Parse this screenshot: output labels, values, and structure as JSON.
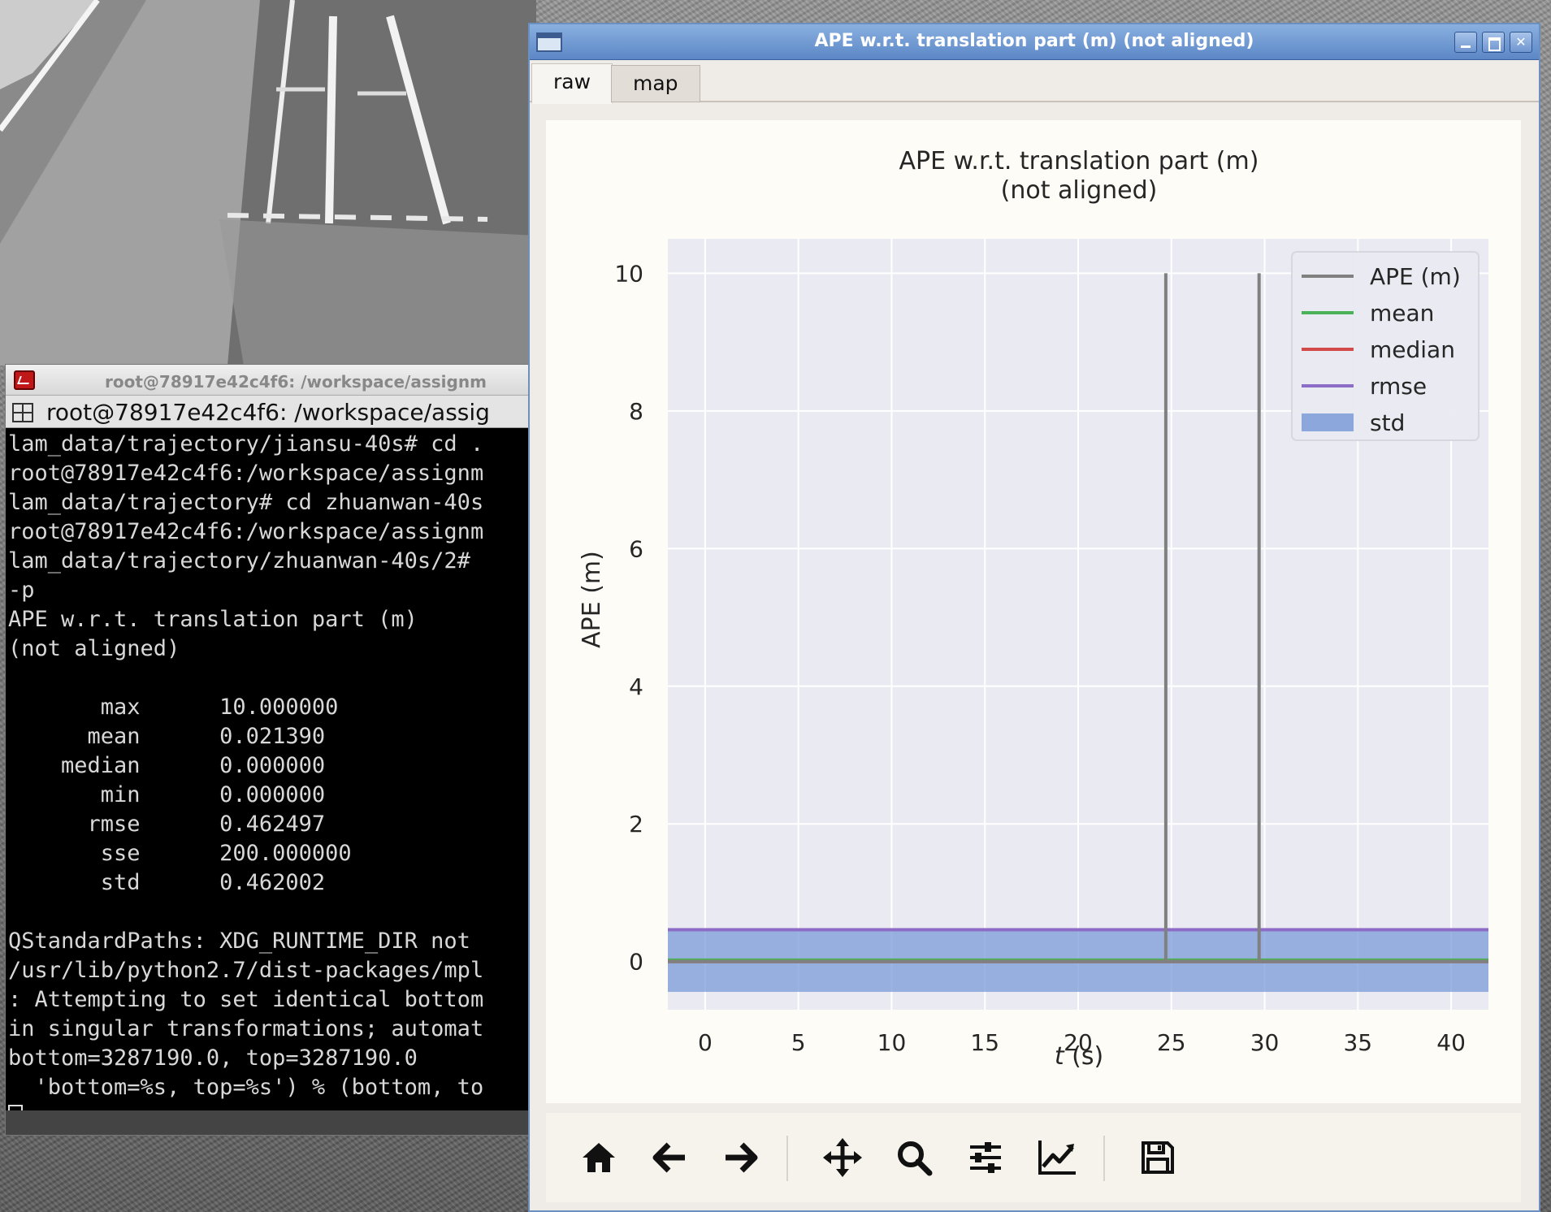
{
  "terminal": {
    "title": "root@78917e42c4f6: /workspace/assignm",
    "tab_title": "root@78917e42c4f6: /workspace/assig",
    "lines": [
      "lam_data/trajectory/jiansu-40s# cd .",
      "root@78917e42c4f6:/workspace/assignm",
      "lam_data/trajectory# cd zhuanwan-40s",
      "root@78917e42c4f6:/workspace/assignm",
      "lam_data/trajectory/zhuanwan-40s/2#",
      "-p",
      "APE w.r.t. translation part (m)",
      "(not aligned)",
      "",
      "       max      10.000000",
      "      mean      0.021390",
      "    median      0.000000",
      "       min      0.000000",
      "      rmse      0.462497",
      "       sse      200.000000",
      "       std      0.462002",
      "",
      "QStandardPaths: XDG_RUNTIME_DIR not",
      "/usr/lib/python2.7/dist-packages/mpl",
      ": Attempting to set identical bottom",
      "in singular transformations; automat",
      "bottom=3287190.0, top=3287190.0",
      "  'bottom=%s, top=%s') % (bottom, to"
    ]
  },
  "plot_window": {
    "title": "APE w.r.t. translation part (m) (not aligned)",
    "tabs": [
      {
        "label": "raw",
        "active": true
      },
      {
        "label": "map",
        "active": false
      }
    ],
    "toolbar": [
      "home-icon",
      "back-arrow-icon",
      "forward-arrow-icon",
      "pan-icon",
      "zoom-icon",
      "configure-subplots-icon",
      "edit-axis-icon",
      "save-icon"
    ]
  },
  "chart_data": {
    "type": "line",
    "title_line1": "APE w.r.t. translation part (m)",
    "title_line2": "(not aligned)",
    "xlabel_italic": "t",
    "xlabel_unit": " (s)",
    "ylabel": "APE (m)",
    "xlim": [
      -2,
      42
    ],
    "ylim": [
      -0.7,
      10.5
    ],
    "xticks": [
      0,
      5,
      10,
      15,
      20,
      25,
      30,
      35,
      40
    ],
    "yticks": [
      0,
      2,
      4,
      6,
      8,
      10
    ],
    "grid": true,
    "legend_position": "top-right",
    "series": [
      {
        "name": "APE (m)",
        "color": "#808080",
        "kind": "line",
        "x": [
          -2,
          24.7,
          24.7,
          24.7,
          29.7,
          29.7,
          29.7,
          42
        ],
        "y": [
          0,
          0,
          10,
          0,
          0,
          10,
          0,
          0
        ]
      },
      {
        "name": "mean",
        "color": "#4ab35a",
        "kind": "hline",
        "value": 0.02139
      },
      {
        "name": "median",
        "color": "#d34a4a",
        "kind": "hline",
        "value": 0.0
      },
      {
        "name": "rmse",
        "color": "#8c6cc6",
        "kind": "hline",
        "value": 0.462497
      },
      {
        "name": "std",
        "color": "#7b9bd8",
        "kind": "band",
        "center": 0.02139,
        "value": 0.462002
      }
    ]
  }
}
